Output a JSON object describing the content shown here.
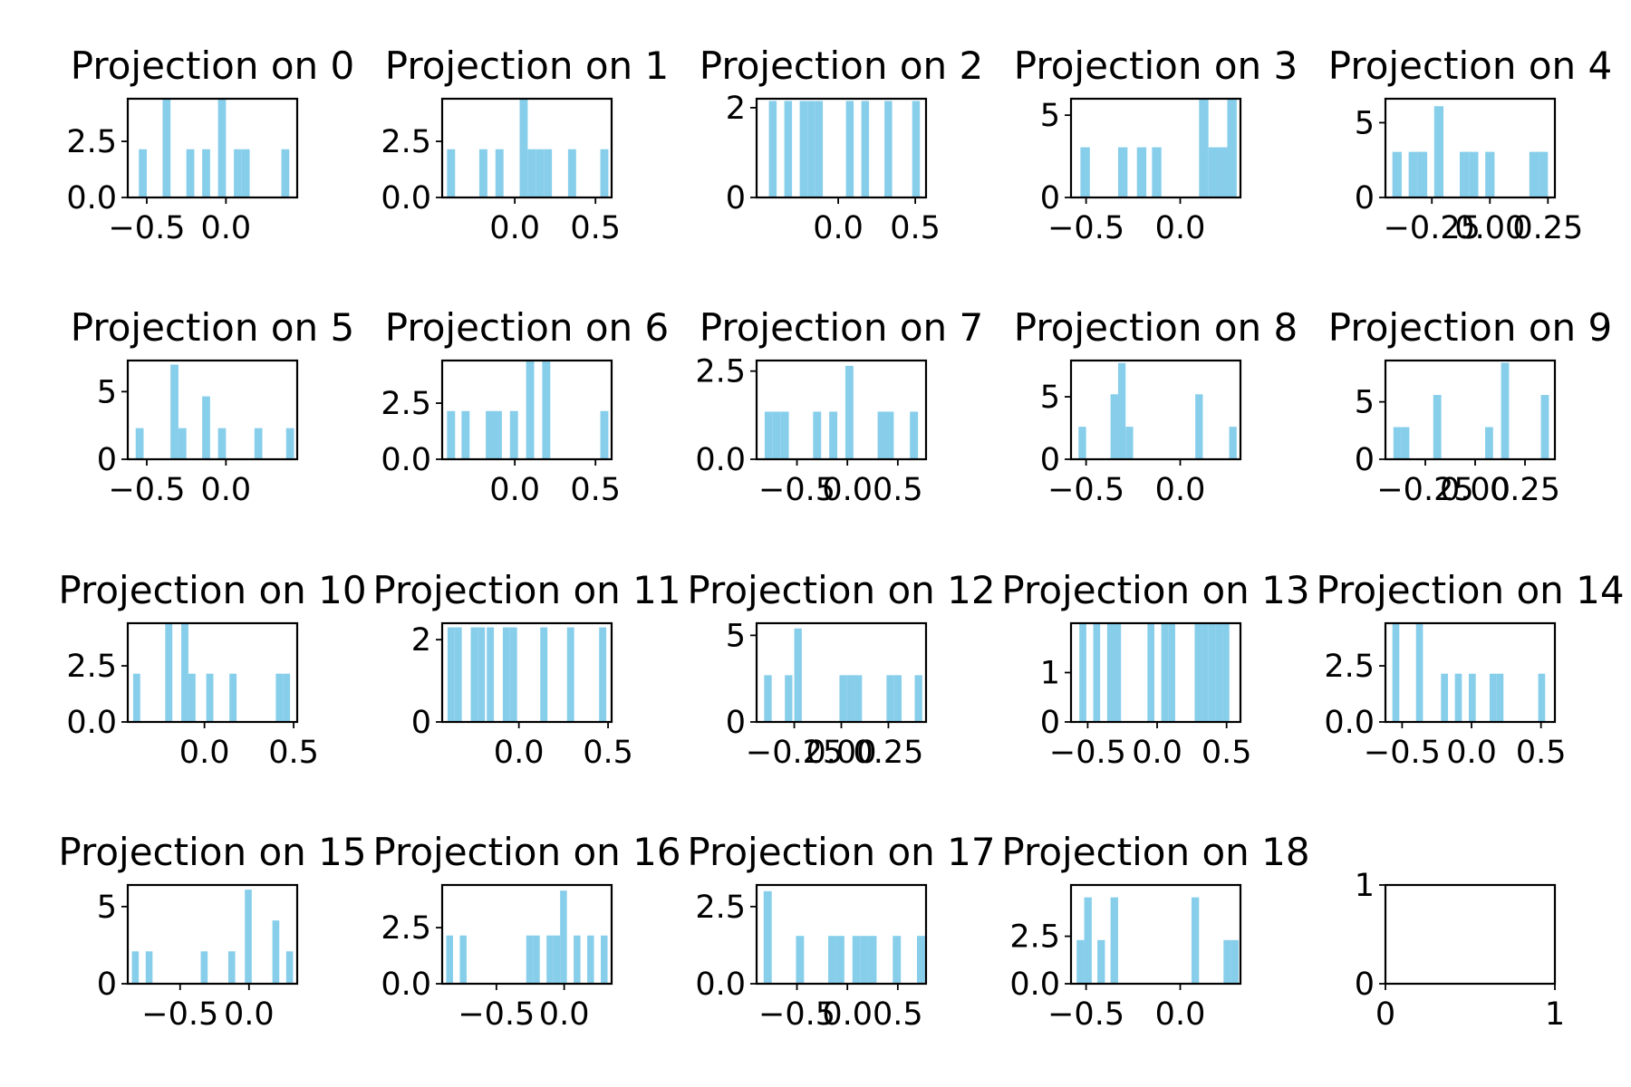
{
  "style": {
    "bar_color": "#87CEEB",
    "axis_color": "#000000",
    "background": "#ffffff"
  },
  "chart_data": [
    {
      "type": "bar",
      "title": "Projection on 0",
      "xlim": [
        -0.62,
        0.45
      ],
      "ylim": [
        0,
        4.4
      ],
      "xticks": [
        -0.5,
        0.0
      ],
      "xtick_labels": [
        "−0.5",
        "0.0"
      ],
      "yticks": [
        0,
        2.5
      ],
      "ytick_labels": [
        "0.0",
        "2.5"
      ],
      "bins": [
        [
          -0.55,
          -0.5,
          2.15
        ],
        [
          -0.4,
          -0.35,
          4.4
        ],
        [
          -0.25,
          -0.2,
          2.15
        ],
        [
          -0.15,
          -0.1,
          2.15
        ],
        [
          -0.05,
          0.0,
          4.4
        ],
        [
          0.05,
          0.1,
          2.15
        ],
        [
          0.1,
          0.15,
          2.15
        ],
        [
          0.35,
          0.4,
          2.15
        ]
      ]
    },
    {
      "type": "bar",
      "title": "Projection on 1",
      "xlim": [
        -0.45,
        0.6
      ],
      "ylim": [
        0,
        4.4
      ],
      "xticks": [
        0.0,
        0.5
      ],
      "xtick_labels": [
        "0.0",
        "0.5"
      ],
      "yticks": [
        0,
        2.5
      ],
      "ytick_labels": [
        "0.0",
        "2.5"
      ],
      "bins": [
        [
          -0.42,
          -0.37,
          2.15
        ],
        [
          -0.22,
          -0.17,
          2.15
        ],
        [
          -0.12,
          -0.07,
          2.15
        ],
        [
          0.03,
          0.08,
          4.4
        ],
        [
          0.08,
          0.13,
          2.15
        ],
        [
          0.13,
          0.18,
          2.15
        ],
        [
          0.18,
          0.23,
          2.15
        ],
        [
          0.33,
          0.38,
          2.15
        ],
        [
          0.53,
          0.58,
          2.15
        ]
      ]
    },
    {
      "type": "bar",
      "title": "Projection on 2",
      "xlim": [
        -0.53,
        0.57
      ],
      "ylim": [
        0,
        2.2
      ],
      "xticks": [
        0.0,
        0.5
      ],
      "xtick_labels": [
        "0.0",
        "0.5"
      ],
      "yticks": [
        0,
        2
      ],
      "ytick_labels": [
        "0",
        "2"
      ],
      "bins": [
        [
          -0.45,
          -0.4,
          2.15
        ],
        [
          -0.35,
          -0.3,
          2.15
        ],
        [
          -0.25,
          -0.2,
          2.15
        ],
        [
          -0.2,
          -0.15,
          2.15
        ],
        [
          -0.15,
          -0.1,
          2.15
        ],
        [
          0.05,
          0.1,
          2.15
        ],
        [
          0.15,
          0.2,
          2.15
        ],
        [
          0.3,
          0.35,
          2.15
        ],
        [
          0.48,
          0.53,
          2.15
        ]
      ]
    },
    {
      "type": "bar",
      "title": "Projection on 3",
      "xlim": [
        -0.58,
        0.32
      ],
      "ylim": [
        0,
        6
      ],
      "xticks": [
        -0.5,
        0.0
      ],
      "xtick_labels": [
        "−0.5",
        "0.0"
      ],
      "yticks": [
        0,
        5
      ],
      "ytick_labels": [
        "0",
        "5"
      ],
      "bins": [
        [
          -0.53,
          -0.48,
          3.05
        ],
        [
          -0.33,
          -0.28,
          3.05
        ],
        [
          -0.23,
          -0.18,
          3.05
        ],
        [
          -0.15,
          -0.1,
          3.05
        ],
        [
          0.1,
          0.15,
          6
        ],
        [
          0.15,
          0.2,
          3.05
        ],
        [
          0.2,
          0.25,
          3.05
        ],
        [
          0.25,
          0.3,
          6
        ]
      ]
    },
    {
      "type": "bar",
      "title": "Projection on 4",
      "xlim": [
        -0.45,
        0.28
      ],
      "ylim": [
        0,
        6.6
      ],
      "xticks": [
        -0.25,
        0.0,
        0.25
      ],
      "xtick_labels": [
        "−0.25",
        "0.00",
        "0.25"
      ],
      "yticks": [
        0,
        5
      ],
      "ytick_labels": [
        "0",
        "5"
      ],
      "bins": [
        [
          -0.42,
          -0.38,
          3.05
        ],
        [
          -0.35,
          -0.31,
          3.05
        ],
        [
          -0.31,
          -0.27,
          3.05
        ],
        [
          -0.24,
          -0.2,
          6.1
        ],
        [
          -0.13,
          -0.09,
          3.05
        ],
        [
          -0.09,
          -0.05,
          3.05
        ],
        [
          -0.02,
          0.02,
          3.05
        ],
        [
          0.17,
          0.21,
          3.05
        ],
        [
          0.21,
          0.25,
          3.05
        ]
      ]
    },
    {
      "type": "bar",
      "title": "Projection on 5",
      "xlim": [
        -0.62,
        0.45
      ],
      "ylim": [
        0,
        7.3
      ],
      "xticks": [
        -0.5,
        0.0
      ],
      "xtick_labels": [
        "−0.5",
        "0.0"
      ],
      "yticks": [
        0,
        5
      ],
      "ytick_labels": [
        "0",
        "5"
      ],
      "bins": [
        [
          -0.57,
          -0.52,
          2.3
        ],
        [
          -0.35,
          -0.3,
          7
        ],
        [
          -0.3,
          -0.25,
          2.3
        ],
        [
          -0.15,
          -0.1,
          4.65
        ],
        [
          -0.05,
          0.0,
          2.3
        ],
        [
          0.18,
          0.23,
          2.3
        ],
        [
          0.38,
          0.43,
          2.3
        ]
      ]
    },
    {
      "type": "bar",
      "title": "Projection on 6",
      "xlim": [
        -0.45,
        0.6
      ],
      "ylim": [
        0,
        4.4
      ],
      "xticks": [
        0.0,
        0.5
      ],
      "xtick_labels": [
        "0.0",
        "0.5"
      ],
      "yticks": [
        0,
        2.5
      ],
      "ytick_labels": [
        "0.0",
        "2.5"
      ],
      "bins": [
        [
          -0.42,
          -0.37,
          2.15
        ],
        [
          -0.33,
          -0.28,
          2.15
        ],
        [
          -0.18,
          -0.13,
          2.15
        ],
        [
          -0.13,
          -0.08,
          2.15
        ],
        [
          -0.03,
          0.02,
          2.15
        ],
        [
          0.07,
          0.12,
          4.4
        ],
        [
          0.17,
          0.22,
          4.4
        ],
        [
          0.53,
          0.58,
          2.15
        ]
      ]
    },
    {
      "type": "bar",
      "title": "Projection on 7",
      "xlim": [
        -0.9,
        0.78
      ],
      "ylim": [
        0,
        2.8
      ],
      "xticks": [
        -0.5,
        0.0,
        0.5
      ],
      "xtick_labels": [
        "−0.5",
        "0.0",
        "0.5"
      ],
      "yticks": [
        0,
        2.5
      ],
      "ytick_labels": [
        "0.0",
        "2.5"
      ],
      "bins": [
        [
          -0.82,
          -0.74,
          1.35
        ],
        [
          -0.74,
          -0.66,
          1.35
        ],
        [
          -0.66,
          -0.58,
          1.35
        ],
        [
          -0.34,
          -0.26,
          1.35
        ],
        [
          -0.18,
          -0.1,
          1.35
        ],
        [
          -0.02,
          0.06,
          2.65
        ],
        [
          0.3,
          0.38,
          1.35
        ],
        [
          0.38,
          0.46,
          1.35
        ],
        [
          0.62,
          0.7,
          1.35
        ]
      ]
    },
    {
      "type": "bar",
      "title": "Projection on 8",
      "xlim": [
        -0.58,
        0.32
      ],
      "ylim": [
        0,
        7.9
      ],
      "xticks": [
        -0.5,
        0.0
      ],
      "xtick_labels": [
        "−0.5",
        "0.0"
      ],
      "yticks": [
        0,
        5
      ],
      "ytick_labels": [
        "0",
        "5"
      ],
      "bins": [
        [
          -0.54,
          -0.5,
          2.6
        ],
        [
          -0.37,
          -0.33,
          5.2
        ],
        [
          -0.33,
          -0.29,
          7.7
        ],
        [
          -0.29,
          -0.25,
          2.6
        ],
        [
          0.08,
          0.12,
          5.2
        ],
        [
          0.26,
          0.3,
          2.6
        ]
      ]
    },
    {
      "type": "bar",
      "title": "Projection on 9",
      "xlim": [
        -0.45,
        0.4
      ],
      "ylim": [
        0,
        8.6
      ],
      "xticks": [
        -0.25,
        0.0,
        0.25
      ],
      "xtick_labels": [
        "−0.25",
        "0.00",
        "0.25"
      ],
      "yticks": [
        0,
        5
      ],
      "ytick_labels": [
        "0",
        "5"
      ],
      "bins": [
        [
          -0.41,
          -0.37,
          2.8
        ],
        [
          -0.37,
          -0.33,
          2.8
        ],
        [
          -0.21,
          -0.17,
          5.6
        ],
        [
          0.05,
          0.09,
          2.8
        ],
        [
          0.13,
          0.17,
          8.4
        ],
        [
          0.33,
          0.37,
          5.6
        ]
      ]
    },
    {
      "type": "bar",
      "title": "Projection on 10",
      "xlim": [
        -0.43,
        0.52
      ],
      "ylim": [
        0,
        4.4
      ],
      "xticks": [
        0.0,
        0.5
      ],
      "xtick_labels": [
        "0.0",
        "0.5"
      ],
      "yticks": [
        0,
        2.5
      ],
      "ytick_labels": [
        "0.0",
        "2.5"
      ],
      "bins": [
        [
          -0.4,
          -0.36,
          2.15
        ],
        [
          -0.22,
          -0.18,
          4.4
        ],
        [
          -0.13,
          -0.09,
          4.4
        ],
        [
          -0.09,
          -0.05,
          2.15
        ],
        [
          0.01,
          0.05,
          2.15
        ],
        [
          0.14,
          0.18,
          2.15
        ],
        [
          0.4,
          0.44,
          2.15
        ],
        [
          0.44,
          0.48,
          2.15
        ]
      ]
    },
    {
      "type": "bar",
      "title": "Projection on 11",
      "xlim": [
        -0.43,
        0.52
      ],
      "ylim": [
        0,
        2.4
      ],
      "xticks": [
        0.0,
        0.5
      ],
      "xtick_labels": [
        "0.0",
        "0.5"
      ],
      "yticks": [
        0,
        2
      ],
      "ytick_labels": [
        "0",
        "2"
      ],
      "bins": [
        [
          -0.4,
          -0.36,
          2.3
        ],
        [
          -0.36,
          -0.32,
          2.3
        ],
        [
          -0.27,
          -0.23,
          2.3
        ],
        [
          -0.23,
          -0.19,
          2.3
        ],
        [
          -0.18,
          -0.14,
          2.3
        ],
        [
          -0.09,
          -0.05,
          2.3
        ],
        [
          -0.05,
          -0.01,
          2.3
        ],
        [
          0.12,
          0.16,
          2.3
        ],
        [
          0.27,
          0.31,
          2.3
        ],
        [
          0.45,
          0.49,
          2.3
        ]
      ]
    },
    {
      "type": "bar",
      "title": "Projection on 12",
      "xlim": [
        -0.45,
        0.45
      ],
      "ylim": [
        0,
        5.7
      ],
      "xticks": [
        -0.25,
        0.0,
        0.25
      ],
      "xtick_labels": [
        "−0.25",
        "0.00",
        "0.25"
      ],
      "yticks": [
        0,
        5
      ],
      "ytick_labels": [
        "0",
        "5"
      ],
      "bins": [
        [
          -0.41,
          -0.37,
          2.7
        ],
        [
          -0.3,
          -0.26,
          2.7
        ],
        [
          -0.25,
          -0.21,
          5.4
        ],
        [
          -0.01,
          0.03,
          2.7
        ],
        [
          0.03,
          0.07,
          2.7
        ],
        [
          0.07,
          0.11,
          2.7
        ],
        [
          0.24,
          0.28,
          2.7
        ],
        [
          0.28,
          0.32,
          2.7
        ],
        [
          0.39,
          0.43,
          2.7
        ]
      ]
    },
    {
      "type": "bar",
      "title": "Projection on 13",
      "xlim": [
        -0.62,
        0.6
      ],
      "ylim": [
        0,
        2
      ],
      "xticks": [
        -0.5,
        0.0,
        0.5
      ],
      "xtick_labels": [
        "−0.5",
        "0.0",
        "0.5"
      ],
      "yticks": [
        0,
        1
      ],
      "ytick_labels": [
        "0",
        "1"
      ],
      "bins": [
        [
          -0.56,
          -0.51,
          2
        ],
        [
          -0.46,
          -0.41,
          2
        ],
        [
          -0.36,
          -0.31,
          2
        ],
        [
          -0.31,
          -0.26,
          2
        ],
        [
          -0.07,
          -0.02,
          2
        ],
        [
          0.03,
          0.08,
          2
        ],
        [
          0.08,
          0.13,
          2
        ],
        [
          0.27,
          0.32,
          2
        ],
        [
          0.32,
          0.37,
          2
        ],
        [
          0.37,
          0.42,
          2
        ],
        [
          0.42,
          0.47,
          2
        ],
        [
          0.47,
          0.52,
          2
        ]
      ]
    },
    {
      "type": "bar",
      "title": "Projection on 14",
      "xlim": [
        -0.62,
        0.6
      ],
      "ylim": [
        0,
        4.4
      ],
      "xticks": [
        -0.5,
        0.0,
        0.5
      ],
      "xtick_labels": [
        "−0.5",
        "0.0",
        "0.5"
      ],
      "yticks": [
        0,
        2.5
      ],
      "ytick_labels": [
        "0.0",
        "2.5"
      ],
      "bins": [
        [
          -0.57,
          -0.52,
          4.4
        ],
        [
          -0.4,
          -0.35,
          4.4
        ],
        [
          -0.22,
          -0.17,
          2.15
        ],
        [
          -0.12,
          -0.07,
          2.15
        ],
        [
          -0.02,
          0.03,
          2.15
        ],
        [
          0.13,
          0.18,
          2.15
        ],
        [
          0.18,
          0.23,
          2.15
        ],
        [
          0.48,
          0.53,
          2.15
        ]
      ]
    },
    {
      "type": "bar",
      "title": "Projection on 15",
      "xlim": [
        -0.88,
        0.35
      ],
      "ylim": [
        0,
        6.4
      ],
      "xticks": [
        -0.5,
        0.0
      ],
      "xtick_labels": [
        "−0.5",
        "0.0"
      ],
      "yticks": [
        0,
        5
      ],
      "ytick_labels": [
        "0",
        "5"
      ],
      "bins": [
        [
          -0.85,
          -0.8,
          2.1
        ],
        [
          -0.75,
          -0.7,
          2.1
        ],
        [
          -0.35,
          -0.3,
          2.1
        ],
        [
          -0.15,
          -0.1,
          2.1
        ],
        [
          -0.03,
          0.02,
          6.1
        ],
        [
          0.17,
          0.22,
          4.1
        ],
        [
          0.27,
          0.32,
          2.1
        ]
      ]
    },
    {
      "type": "bar",
      "title": "Projection on 16",
      "xlim": [
        -0.9,
        0.35
      ],
      "ylim": [
        0,
        4.4
      ],
      "xticks": [
        -0.5,
        0.0
      ],
      "xtick_labels": [
        "−0.5",
        "0.0"
      ],
      "yticks": [
        0,
        2.5
      ],
      "ytick_labels": [
        "0.0",
        "2.5"
      ],
      "bins": [
        [
          -0.87,
          -0.82,
          2.15
        ],
        [
          -0.77,
          -0.72,
          2.15
        ],
        [
          -0.28,
          -0.23,
          2.15
        ],
        [
          -0.23,
          -0.18,
          2.15
        ],
        [
          -0.13,
          -0.08,
          2.15
        ],
        [
          -0.08,
          -0.03,
          2.15
        ],
        [
          -0.03,
          0.02,
          4.15
        ],
        [
          0.07,
          0.12,
          2.15
        ],
        [
          0.17,
          0.22,
          2.15
        ],
        [
          0.27,
          0.32,
          2.15
        ]
      ]
    },
    {
      "type": "bar",
      "title": "Projection on 17",
      "xlim": [
        -0.9,
        0.78
      ],
      "ylim": [
        0,
        3.2
      ],
      "xticks": [
        -0.5,
        0.0,
        0.5
      ],
      "xtick_labels": [
        "−0.5",
        "0.0",
        "0.5"
      ],
      "yticks": [
        0,
        2.5
      ],
      "ytick_labels": [
        "0.0",
        "2.5"
      ],
      "bins": [
        [
          -0.83,
          -0.75,
          3
        ],
        [
          -0.51,
          -0.43,
          1.55
        ],
        [
          -0.19,
          -0.11,
          1.55
        ],
        [
          -0.11,
          -0.03,
          1.55
        ],
        [
          0.05,
          0.13,
          1.55
        ],
        [
          0.13,
          0.21,
          1.55
        ],
        [
          0.21,
          0.29,
          1.55
        ],
        [
          0.45,
          0.53,
          1.55
        ],
        [
          0.69,
          0.77,
          1.55
        ]
      ]
    },
    {
      "type": "bar",
      "title": "Projection on 18",
      "xlim": [
        -0.58,
        0.32
      ],
      "ylim": [
        0,
        5.2
      ],
      "xticks": [
        -0.5,
        0.0
      ],
      "xtick_labels": [
        "−0.5",
        "0.0"
      ],
      "yticks": [
        0,
        2.5
      ],
      "ytick_labels": [
        "0.0",
        "2.5"
      ],
      "bins": [
        [
          -0.55,
          -0.51,
          2.3
        ],
        [
          -0.51,
          -0.47,
          4.55
        ],
        [
          -0.44,
          -0.4,
          2.3
        ],
        [
          -0.37,
          -0.33,
          4.55
        ],
        [
          0.06,
          0.1,
          4.55
        ],
        [
          0.23,
          0.27,
          2.3
        ],
        [
          0.27,
          0.31,
          2.3
        ]
      ]
    },
    {
      "type": "empty",
      "title": "",
      "xlim": [
        0,
        1
      ],
      "ylim": [
        0,
        1
      ],
      "xticks": [
        0,
        1
      ],
      "xtick_labels": [
        "0",
        "1"
      ],
      "yticks": [
        0,
        1
      ],
      "ytick_labels": [
        "0",
        "1"
      ],
      "bins": []
    }
  ]
}
